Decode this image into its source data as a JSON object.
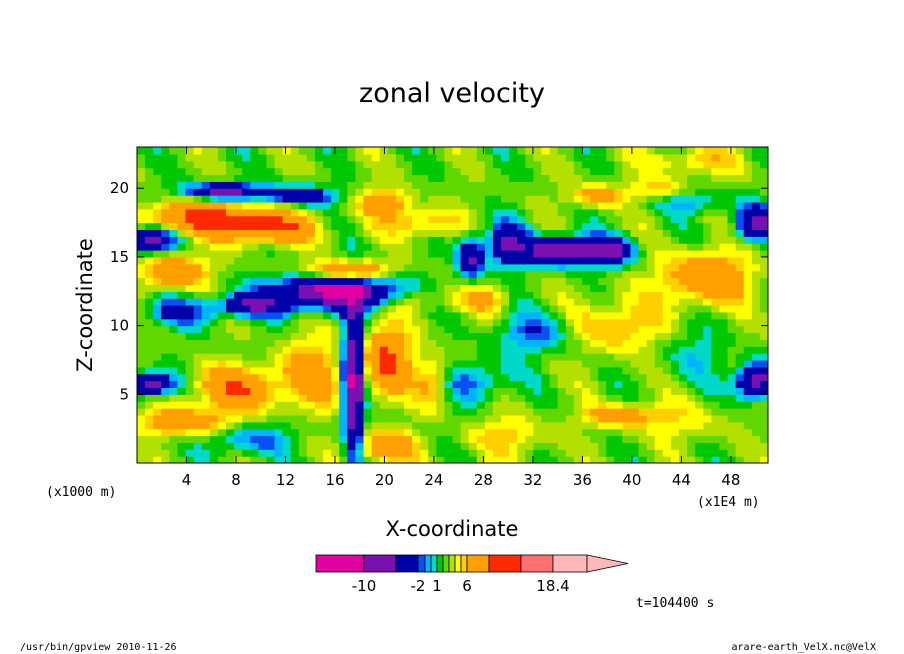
{
  "chart_data": {
    "type": "heatmap",
    "title": "zonal velocity",
    "xlabel": "X-coordinate",
    "ylabel": "Z-coordinate",
    "x_unit": "(x1E4 m)",
    "y_unit": "(x1000 m)",
    "xlim": [
      0,
      51
    ],
    "ylim": [
      0,
      23
    ],
    "x_ticks": [
      4,
      8,
      12,
      16,
      20,
      24,
      28,
      32,
      36,
      40,
      44,
      48
    ],
    "y_ticks": [
      5,
      10,
      15,
      20
    ],
    "colorbar": {
      "min": -14,
      "max": 18.4,
      "levels": [
        -14,
        -10,
        -6,
        -2,
        -1,
        0,
        1,
        2,
        3,
        4,
        5,
        6,
        10,
        14,
        18.4
      ],
      "colors": [
        "#e000a0",
        "#7a10b0",
        "#0000a8",
        "#0a50f0",
        "#00b4ff",
        "#00d8c8",
        "#00c800",
        "#60d800",
        "#b4e000",
        "#ffff00",
        "#ffd000",
        "#ffa000",
        "#ff2a00",
        "#ff7070",
        "#ffb8b8"
      ],
      "tick_labels": [
        "-10",
        "-2",
        "1",
        "6",
        "18.4"
      ],
      "tick_values": [
        -10,
        -2,
        1,
        6,
        18.4
      ]
    }
  },
  "time_label": "t=104400 s",
  "footer": {
    "left": "/usr/bin/gpview   2010-11-26",
    "right": "arare-earth_VelX.nc@VelX"
  }
}
